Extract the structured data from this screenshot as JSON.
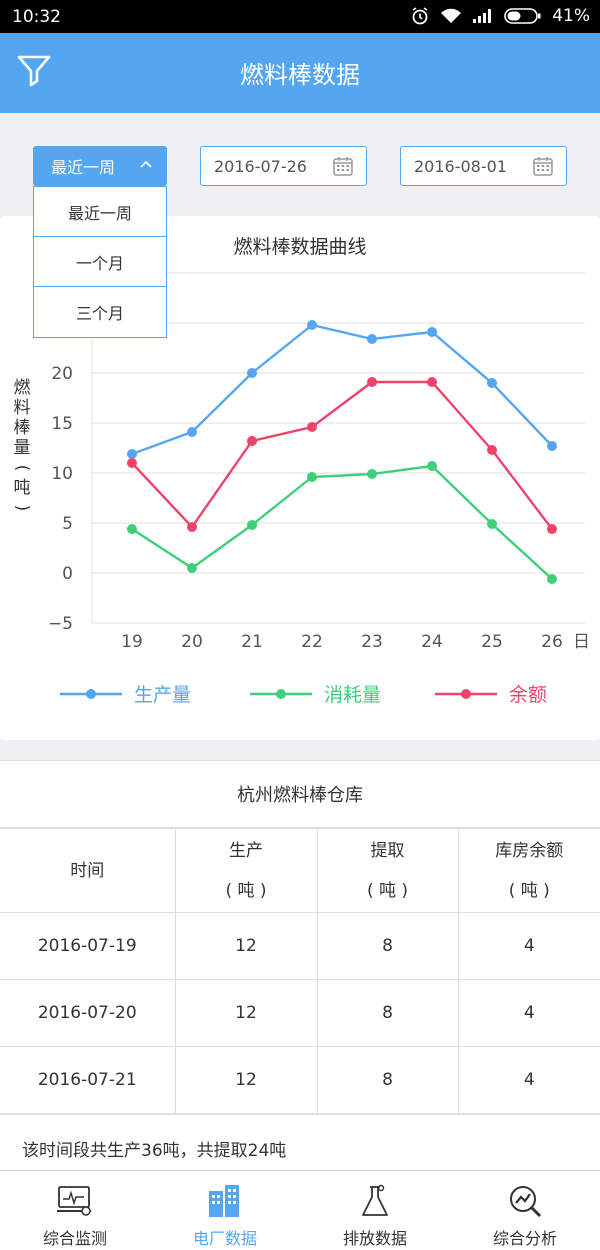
{
  "status_bar": {
    "time": "10:32",
    "battery": "41%"
  },
  "header": {
    "title": "燃料棒数据"
  },
  "controls": {
    "range_selected": "最近一周",
    "start_date": "2016-07-26",
    "end_date": "2016-08-01",
    "range_options": [
      "最近一周",
      "一个月",
      "三个月"
    ]
  },
  "chart_data": {
    "type": "line",
    "title": "燃料棒数据曲线",
    "ylabel_chars": [
      "燃",
      "料",
      "棒",
      "量",
      "(",
      "吨",
      ")"
    ],
    "x": [
      "19",
      "20",
      "21",
      "22",
      "23",
      "24",
      "25",
      "26"
    ],
    "x_unit": "日",
    "ylim": [
      -5,
      30
    ],
    "yticks": [
      "20",
      "15",
      "10",
      "5",
      "0",
      "−5"
    ],
    "ytick_values": [
      20,
      15,
      10,
      5,
      0,
      -5
    ],
    "series": [
      {
        "name": "生产量",
        "color": "#55a6f0",
        "values": [
          11.9,
          14.1,
          20.0,
          24.8,
          23.4,
          24.1,
          19.0,
          12.7
        ]
      },
      {
        "name": "消耗量",
        "color": "#3fcf7a",
        "values": [
          4.4,
          0.5,
          4.8,
          9.6,
          9.9,
          10.7,
          4.9,
          -0.6
        ]
      },
      {
        "name": "余额",
        "color": "#f0436a",
        "values": [
          11.0,
          4.6,
          13.2,
          14.6,
          19.1,
          19.1,
          12.3,
          4.4
        ]
      }
    ]
  },
  "table": {
    "title": "杭州燃料棒仓库",
    "headers": [
      {
        "line1": "时间",
        "line2": ""
      },
      {
        "line1": "生产",
        "line2": "( 吨 )"
      },
      {
        "line1": "提取",
        "line2": "( 吨 )"
      },
      {
        "line1": "库房余额",
        "line2": "( 吨 )"
      }
    ],
    "rows": [
      [
        "2016-07-19",
        "12",
        "8",
        "4"
      ],
      [
        "2016-07-20",
        "12",
        "8",
        "4"
      ],
      [
        "2016-07-21",
        "12",
        "8",
        "4"
      ]
    ],
    "summary": "该时间段共生产36吨，共提取24吨"
  },
  "tabs": [
    {
      "label": "综合监测",
      "icon": "monitor-icon",
      "active": false
    },
    {
      "label": "电厂数据",
      "icon": "building-icon",
      "active": true
    },
    {
      "label": "排放数据",
      "icon": "flask-icon",
      "active": false
    },
    {
      "label": "综合分析",
      "icon": "analysis-icon",
      "active": false
    }
  ],
  "colors": {
    "accent": "#55a6f0",
    "production": "#55a6f0",
    "consumption": "#3fcf7a",
    "balance": "#f0436a"
  }
}
